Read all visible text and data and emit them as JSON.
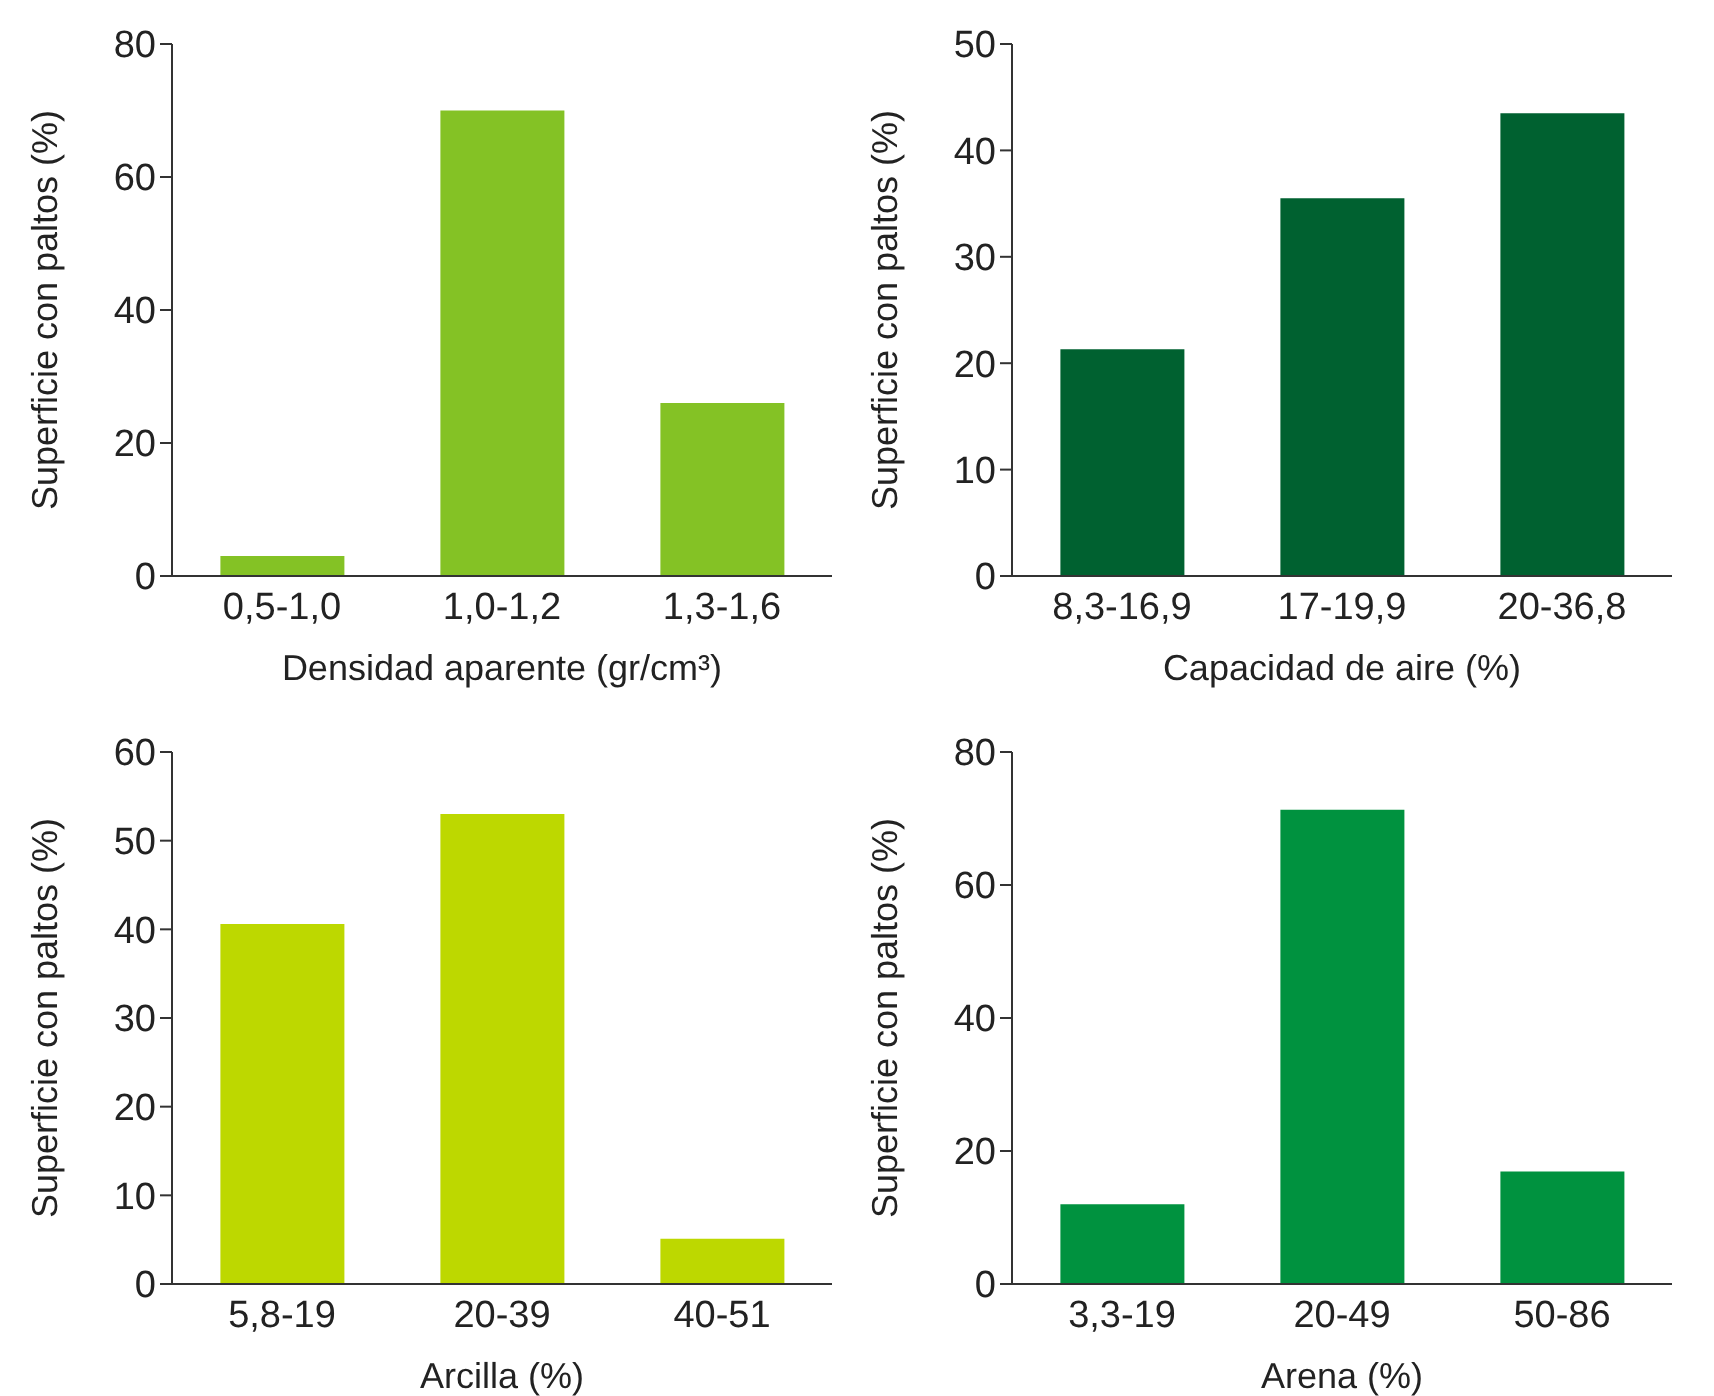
{
  "chart_data": [
    {
      "type": "bar",
      "xlabel": "Densidad aparente (gr/cm³)",
      "ylabel": "Superficie con paltos (%)",
      "categories": [
        "0,5-1,0",
        "1,0-1,2",
        "1,3-1,6"
      ],
      "values": [
        3,
        70,
        26
      ],
      "color": "#84c225",
      "ylim": [
        0,
        80
      ],
      "yticks": [
        0,
        20,
        40,
        60,
        80
      ],
      "grid": false,
      "legend": false
    },
    {
      "type": "bar",
      "xlabel": "Capacidad de aire (%)",
      "ylabel": "Superficie con paltos (%)",
      "categories": [
        "8,3-16,9",
        "17-19,9",
        "20-36,8"
      ],
      "values": [
        21.3,
        35.5,
        43.5
      ],
      "color": "#006130",
      "ylim": [
        0,
        50
      ],
      "yticks": [
        0,
        10,
        20,
        30,
        40,
        50
      ],
      "grid": false,
      "legend": false
    },
    {
      "type": "bar",
      "xlabel": "Arcilla (%)",
      "ylabel": "Superficie con paltos (%)",
      "categories": [
        "5,8-19",
        "20-39",
        "40-51"
      ],
      "values": [
        40.6,
        53,
        5.1
      ],
      "color": "#bdd800",
      "ylim": [
        0,
        60
      ],
      "yticks": [
        0,
        10,
        20,
        30,
        40,
        50,
        60
      ],
      "grid": false,
      "legend": false
    },
    {
      "type": "bar",
      "xlabel": "Arena (%)",
      "ylabel": "Superficie con paltos (%)",
      "categories": [
        "3,3-19",
        "20-49",
        "50-86"
      ],
      "values": [
        12,
        71.3,
        16.9
      ],
      "color": "#00923f",
      "ylim": [
        0,
        80
      ],
      "yticks": [
        0,
        20,
        40,
        60,
        80
      ],
      "grid": false,
      "legend": false
    }
  ]
}
